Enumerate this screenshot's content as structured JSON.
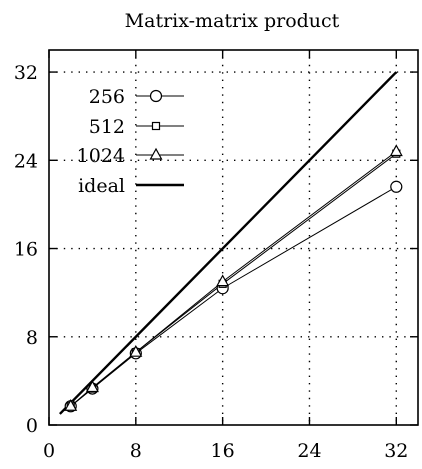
{
  "chart_data": {
    "type": "line",
    "title": "Matrix-matrix product",
    "xlabel": "",
    "ylabel": "",
    "xlim": [
      0,
      34
    ],
    "ylim": [
      0,
      34
    ],
    "xticks": [
      0,
      8,
      16,
      24,
      32
    ],
    "yticks": [
      0,
      8,
      16,
      24,
      32
    ],
    "xtick_labels": [
      "0",
      "8",
      "16",
      "24",
      "32"
    ],
    "ytick_labels": [
      "0",
      "8",
      "16",
      "24",
      "32"
    ],
    "grid": true,
    "legend_position": "top-left",
    "series": [
      {
        "name": "256",
        "marker": "circle",
        "line": "thin",
        "x": [
          2,
          4,
          8,
          16,
          32
        ],
        "y": [
          1.7,
          3.3,
          6.5,
          12.4,
          21.6
        ]
      },
      {
        "name": "512",
        "marker": "square",
        "line": "thin",
        "x": [
          2,
          4,
          8,
          16,
          32
        ],
        "y": [
          1.7,
          3.3,
          6.6,
          12.8,
          24.6
        ]
      },
      {
        "name": "1024",
        "marker": "triangle",
        "line": "thin",
        "x": [
          2,
          4,
          8,
          16,
          32
        ],
        "y": [
          1.7,
          3.4,
          6.6,
          13.0,
          24.8
        ]
      },
      {
        "name": "ideal",
        "marker": "none",
        "line": "thick",
        "x": [
          1,
          32
        ],
        "y": [
          1,
          32
        ]
      }
    ]
  }
}
